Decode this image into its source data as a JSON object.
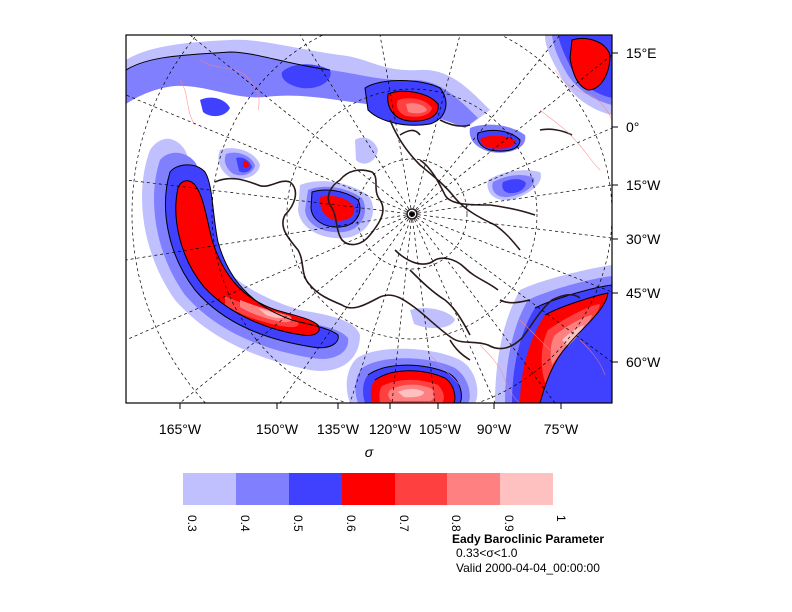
{
  "map": {
    "lon_labels_bottom": [
      "165°W",
      "150°W",
      "135°W",
      "120°W",
      "105°W",
      "90°W",
      "75°W"
    ],
    "lat_labels_right": [
      "15°E",
      "0°",
      "15°W",
      "30°W",
      "45°W",
      "60°W"
    ],
    "x_axis_label": "σ"
  },
  "colorbar": {
    "ticks": [
      "0.3",
      "0.4",
      "0.5",
      "0.6",
      "0.7",
      "0.8",
      "0.9",
      "1"
    ],
    "colors": [
      "#c0c0ff",
      "#8080ff",
      "#4040ff",
      "#ff0000",
      "#ff4040",
      "#ff8080",
      "#ffc0c0"
    ]
  },
  "title": {
    "main": "Eady Baroclinic Parameter",
    "sub": "0.33<σ<1.0",
    "valid": "Valid 2000-04-04_00:00:00"
  },
  "colors": {
    "coast": "#2a1a1a",
    "grid": "#000000",
    "frame": "#000000"
  }
}
